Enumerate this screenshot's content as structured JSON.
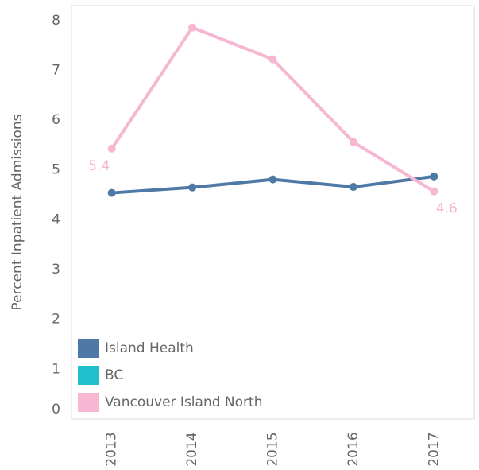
{
  "chart_data": {
    "type": "line",
    "y_label": "Percent Inpatient Admissions",
    "categories": [
      "2013",
      "2014",
      "2015",
      "2016",
      "2017"
    ],
    "series": [
      {
        "name": "Island Health",
        "color": "#4e79a7",
        "values": [
          4.54,
          4.65,
          4.81,
          4.66,
          4.87
        ]
      },
      {
        "name": "BC",
        "color": "#1fbfcc",
        "values": [
          null,
          null,
          null,
          null,
          null
        ]
      },
      {
        "name": "Vancouver Island North",
        "color": "#f7b6d2",
        "values": [
          5.43,
          7.86,
          7.22,
          5.56,
          4.57
        ],
        "value_labels": [
          "5.4",
          null,
          null,
          null,
          "4.6"
        ]
      }
    ],
    "ylim": [
      0,
      8.3
    ],
    "yticks": [
      0,
      1,
      2,
      3,
      4,
      5,
      6,
      7,
      8
    ],
    "grid": false,
    "legend": "lower left"
  }
}
